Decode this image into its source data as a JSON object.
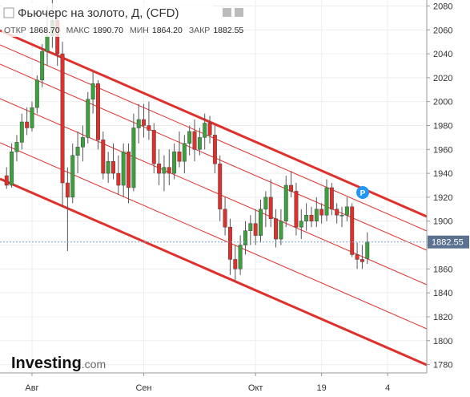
{
  "chart_data": {
    "type": "candlestick",
    "title": "Фьючерс на золото, Д, (CFD)",
    "ohlc_legend": [
      {
        "name": "ОТКР",
        "value": "1868.70"
      },
      {
        "name": "МАКС",
        "value": "1890.70"
      },
      {
        "name": "МИН",
        "value": "1864.20"
      },
      {
        "name": "ЗАКР",
        "value": "1882.55"
      }
    ],
    "annotation": "P",
    "logo": [
      "Investing",
      ".com"
    ],
    "up_color": "#3ca03c",
    "down_color": "#e0302c",
    "grid": true,
    "xlim": [
      -1.3,
      82.7
    ],
    "xticks": [
      {
        "value": 5,
        "label": "Авг"
      },
      {
        "value": 27,
        "label": "Сен"
      },
      {
        "value": 49,
        "label": "Окт"
      },
      {
        "value": 62,
        "label": "19"
      },
      {
        "value": 75,
        "label": "4"
      }
    ],
    "ylim": [
      1773,
      2085
    ],
    "yticks": [
      1780,
      1800,
      1820,
      1840,
      1860,
      1880,
      1900,
      1920,
      1940,
      1960,
      1980,
      2000,
      2020,
      2040,
      2060,
      2080
    ],
    "open": [
      1938,
      1930,
      1958,
      1966,
      1983,
      1978,
      1995,
      2018,
      2042,
      2055,
      2068,
      2040,
      1932,
      1920,
      1955,
      1962,
      1970,
      2002,
      2015,
      1968,
      1940,
      1950,
      1940,
      1930,
      1958,
      1928,
      1978,
      1985,
      1980,
      1976,
      1948,
      1940,
      1945,
      1940,
      1958,
      1950,
      1965,
      1975,
      1960,
      1970,
      1982,
      1972,
      1948,
      1910,
      1895,
      1868,
      1860,
      1880,
      1892,
      1898,
      1888,
      1910,
      1920,
      1902,
      1885,
      1900,
      1930,
      1925,
      1895,
      1900,
      1905,
      1900,
      1910,
      1905,
      1928,
      1910,
      1905,
      1905,
      1912,
      1872,
      1868,
      1868.7
    ],
    "high": [
      1945,
      1965,
      1972,
      1990,
      1995,
      2000,
      2022,
      2048,
      2080,
      2085,
      2076,
      2050,
      1945,
      1965,
      1975,
      1980,
      2008,
      2025,
      2018,
      1975,
      1958,
      1965,
      1955,
      1965,
      1965,
      1990,
      1998,
      1998,
      2000,
      1982,
      1960,
      1955,
      1960,
      1965,
      1975,
      1972,
      1980,
      1985,
      1978,
      1990,
      1988,
      1980,
      1955,
      1920,
      1902,
      1880,
      1888,
      1900,
      1905,
      1910,
      1918,
      1925,
      1935,
      1910,
      1910,
      1938,
      1942,
      1932,
      1910,
      1915,
      1912,
      1920,
      1915,
      1935,
      1932,
      1915,
      1912,
      1920,
      1915,
      1882,
      1880,
      1890.7
    ],
    "low": [
      1927,
      1928,
      1950,
      1960,
      1972,
      1975,
      1990,
      2012,
      2030,
      2045,
      2030,
      1912,
      1875,
      1915,
      1940,
      1950,
      1965,
      1990,
      1960,
      1935,
      1932,
      1935,
      1922,
      1920,
      1915,
      1925,
      1965,
      1970,
      1968,
      1940,
      1930,
      1925,
      1930,
      1935,
      1945,
      1940,
      1955,
      1950,
      1955,
      1960,
      1965,
      1940,
      1900,
      1888,
      1855,
      1850,
      1855,
      1872,
      1880,
      1880,
      1882,
      1895,
      1895,
      1878,
      1880,
      1895,
      1920,
      1888,
      1885,
      1892,
      1895,
      1895,
      1898,
      1900,
      1905,
      1898,
      1895,
      1900,
      1870,
      1860,
      1860,
      1864.2
    ],
    "close": [
      1930,
      1958,
      1966,
      1983,
      1978,
      1995,
      2018,
      2042,
      2055,
      2068,
      2040,
      1932,
      1920,
      1955,
      1962,
      1970,
      2002,
      2015,
      1968,
      1940,
      1950,
      1940,
      1930,
      1958,
      1928,
      1978,
      1985,
      1980,
      1976,
      1948,
      1940,
      1945,
      1940,
      1958,
      1950,
      1965,
      1975,
      1960,
      1970,
      1982,
      1972,
      1948,
      1910,
      1895,
      1868,
      1860,
      1880,
      1892,
      1898,
      1888,
      1910,
      1920,
      1902,
      1885,
      1900,
      1930,
      1925,
      1895,
      1900,
      1905,
      1900,
      1910,
      1905,
      1928,
      1910,
      1905,
      1905,
      1912,
      1872,
      1868,
      1866,
      1882.55
    ]
  }
}
